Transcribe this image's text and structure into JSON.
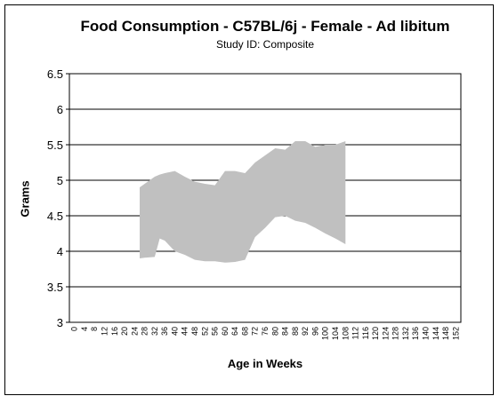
{
  "chart_data": {
    "type": "area",
    "title": "Food Consumption - C57BL/6j - Female - Ad libitum",
    "subtitle": "Study ID: Composite",
    "xlabel": "Age in Weeks",
    "ylabel": "Grams",
    "ylim": [
      3,
      6.5
    ],
    "yticks": [
      "6.5",
      "6",
      "5.5",
      "5",
      "4.5",
      "4",
      "3.5",
      "3"
    ],
    "xticks": [
      "0",
      "4",
      "8",
      "12",
      "16",
      "20",
      "24",
      "28",
      "32",
      "36",
      "40",
      "44",
      "48",
      "52",
      "56",
      "60",
      "64",
      "68",
      "72",
      "76",
      "80",
      "84",
      "88",
      "92",
      "96",
      "100",
      "104",
      "108",
      "112",
      "116",
      "120",
      "124",
      "128",
      "132",
      "136",
      "140",
      "144",
      "148",
      "152"
    ],
    "grid": "horizontal",
    "band_color": "#c0c0c0",
    "series": [
      {
        "x": [
          26,
          28,
          32,
          34,
          36,
          40,
          44,
          48,
          52,
          56,
          60,
          64,
          68,
          72,
          76,
          80,
          84,
          88,
          92,
          96,
          100,
          104,
          108
        ],
        "upper": [
          4.9,
          4.95,
          5.05,
          5.08,
          5.1,
          5.13,
          5.05,
          4.98,
          4.95,
          4.93,
          5.13,
          5.13,
          5.1,
          5.25,
          5.35,
          5.45,
          5.43,
          5.55,
          5.55,
          5.47,
          5.5,
          5.5,
          5.55
        ],
        "lower": [
          3.9,
          3.91,
          3.92,
          4.18,
          4.15,
          4.0,
          3.95,
          3.88,
          3.86,
          3.86,
          3.84,
          3.85,
          3.88,
          4.2,
          4.33,
          4.48,
          4.5,
          4.43,
          4.4,
          4.33,
          4.25,
          4.18,
          4.1
        ]
      }
    ]
  }
}
